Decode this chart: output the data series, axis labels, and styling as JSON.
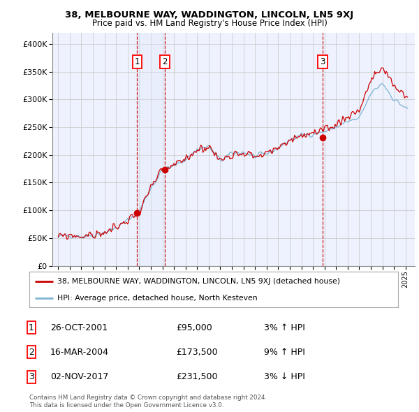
{
  "title": "38, MELBOURNE WAY, WADDINGTON, LINCOLN, LN5 9XJ",
  "subtitle": "Price paid vs. HM Land Registry's House Price Index (HPI)",
  "legend_line1": "38, MELBOURNE WAY, WADDINGTON, LINCOLN, LN5 9XJ (detached house)",
  "legend_line2": "HPI: Average price, detached house, North Kesteven",
  "transactions": [
    {
      "num": 1,
      "date": "26-OCT-2001",
      "price": 95000,
      "pct": "3%",
      "dir": "↑",
      "year": 2001.82
    },
    {
      "num": 2,
      "date": "16-MAR-2004",
      "price": 173500,
      "pct": "9%",
      "dir": "↑",
      "year": 2004.21
    },
    {
      "num": 3,
      "date": "02-NOV-2017",
      "price": 231500,
      "pct": "3%",
      "dir": "↓",
      "year": 2017.84
    }
  ],
  "red_line_color": "#cc0000",
  "blue_line_color": "#7fb3d3",
  "grid_color": "#cccccc",
  "background_color": "#ffffff",
  "plot_bg_color": "#eef2ff",
  "shade_color": "#dde8f5",
  "footer": "Contains HM Land Registry data © Crown copyright and database right 2024.\nThis data is licensed under the Open Government Licence v3.0.",
  "ylim": [
    0,
    420000
  ],
  "yticks": [
    0,
    50000,
    100000,
    150000,
    200000,
    250000,
    300000,
    350000,
    400000
  ],
  "xlim_start": 1994.5,
  "xlim_end": 2025.8
}
